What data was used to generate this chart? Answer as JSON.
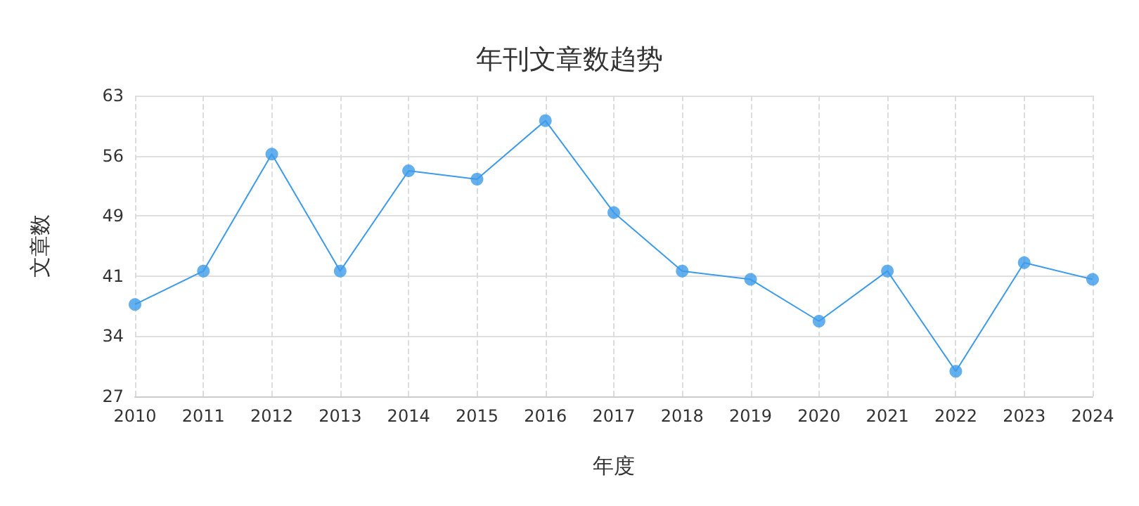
{
  "chart_data": {
    "type": "line",
    "title": "年刊文章数趋势",
    "xlabel": "年度",
    "ylabel": "文章数",
    "categories": [
      "2010",
      "2011",
      "2012",
      "2013",
      "2014",
      "2015",
      "2016",
      "2017",
      "2018",
      "2019",
      "2020",
      "2021",
      "2022",
      "2023",
      "2024"
    ],
    "series": [
      {
        "color": "#3d9be9",
        "values": [
          38,
          42,
          56,
          42,
          54,
          53,
          60,
          49,
          42,
          41,
          36,
          42,
          30,
          43,
          41
        ]
      }
    ],
    "ylim": [
      27,
      63
    ],
    "yticks": [
      {
        "value": 27,
        "label": "27"
      },
      {
        "value": 34.2,
        "label": "34"
      },
      {
        "value": 41.4,
        "label": "41"
      },
      {
        "value": 48.6,
        "label": "49"
      },
      {
        "value": 55.8,
        "label": "56"
      },
      {
        "value": 63,
        "label": "63"
      }
    ],
    "grid": true,
    "marker": "circle",
    "line_style": "solid"
  }
}
